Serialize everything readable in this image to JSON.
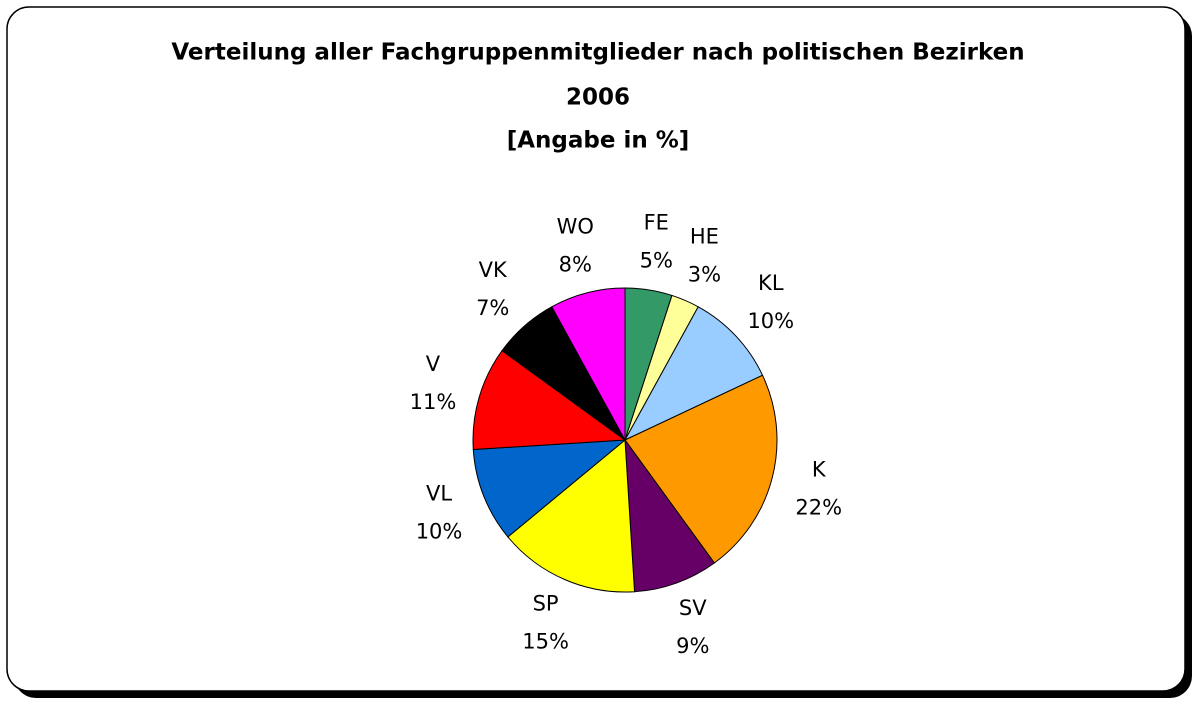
{
  "chart_data": {
    "type": "pie",
    "title": [
      "Verteilung aller Fachgruppenmitglieder nach politischen Bezirken",
      "2006",
      "[Angabe in %]"
    ],
    "categories": [
      "FE",
      "HE",
      "KL",
      "K",
      "SV",
      "SP",
      "VL",
      "V",
      "VK",
      "WO"
    ],
    "values": [
      5,
      3,
      10,
      22,
      9,
      15,
      10,
      11,
      7,
      8
    ],
    "value_labels": [
      "5%",
      "3%",
      "10%",
      "22%",
      "9%",
      "15%",
      "10%",
      "11%",
      "7%",
      "8%"
    ],
    "colors": [
      "#339966",
      "#ffff99",
      "#99ccff",
      "#ff9900",
      "#660066",
      "#ffff00",
      "#0066cc",
      "#ff0000",
      "#000000",
      "#ff00ff"
    ]
  }
}
